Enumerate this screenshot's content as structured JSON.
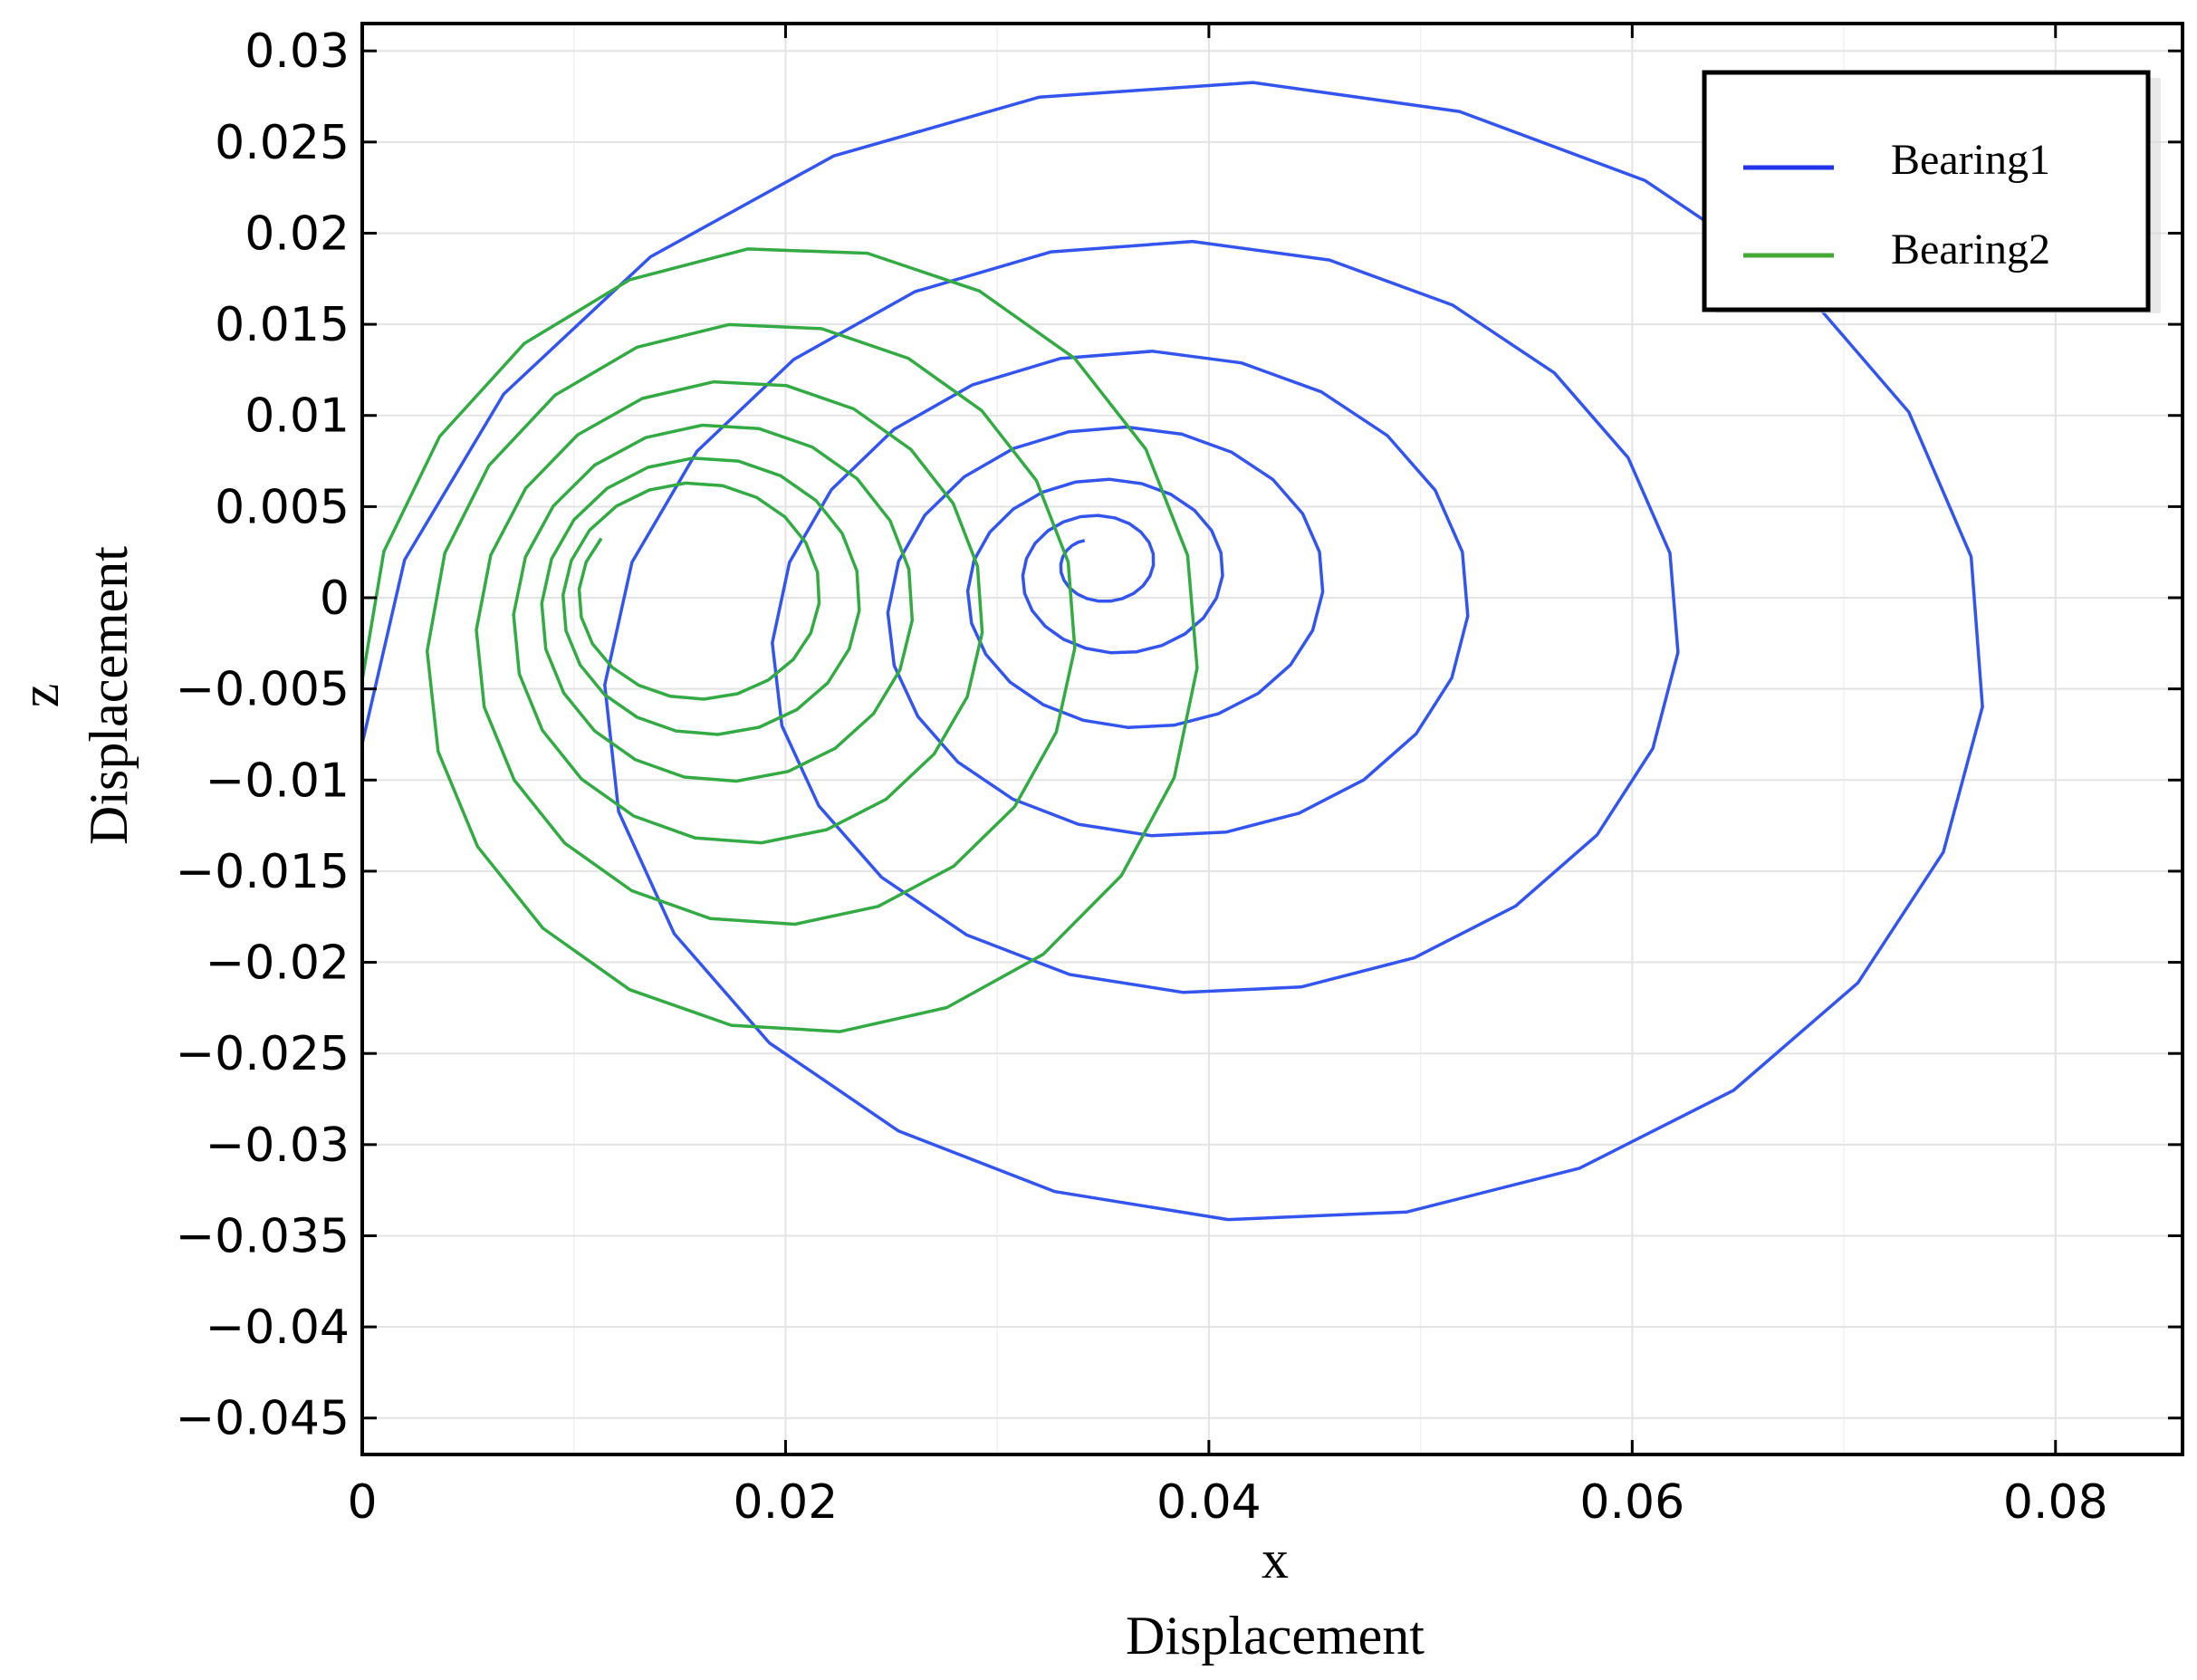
{
  "chart_data": {
    "type": "line",
    "title": "",
    "xlabel_var": "x",
    "xlabel": "Displacement",
    "ylabel_var": "z",
    "ylabel": "Displacement",
    "xlim": [
      0,
      0.086
    ],
    "ylim": [
      -0.047,
      0.0315
    ],
    "grid": true,
    "legend_position": "top-right",
    "x_ticks": [
      0,
      0.02,
      0.04,
      0.06,
      0.08
    ],
    "x_tick_labels": [
      "0",
      "0.02",
      "0.04",
      "0.06",
      "0.08"
    ],
    "y_ticks": [
      0.03,
      0.025,
      0.02,
      0.015,
      0.01,
      0.005,
      0,
      -0.005,
      -0.01,
      -0.015,
      -0.02,
      -0.025,
      -0.03,
      -0.035,
      -0.04,
      -0.045
    ],
    "y_tick_labels": [
      "0.03",
      "0.025",
      "0.02",
      "0.015",
      "0.01",
      "0.005",
      "0",
      "−0.005",
      "−0.01",
      "−0.015",
      "−0.02",
      "−0.025",
      "−0.03",
      "−0.035",
      "−0.04",
      "−0.045"
    ],
    "series": [
      {
        "name": "Bearing1",
        "color": "#3355ee",
        "spiral": {
          "center_start": [
            0.043,
            -0.008
          ],
          "center_end": [
            0.0345,
            0.002
          ],
          "r_start_x": 0.043,
          "r_start_z": 0.039,
          "r_end": 0.0012,
          "turns": 6.2,
          "phase_start_deg": 180,
          "points_per_turn": 24,
          "decay": 2.3
        }
      },
      {
        "name": "Bearing2",
        "color": "#33aa44",
        "spiral": {
          "center_start": [
            0.0215,
            -0.0045
          ],
          "center_end": [
            0.0155,
            0.0002
          ],
          "r_start_x": 0.0215,
          "r_start_z": 0.025,
          "r_end": 0.0052,
          "turns": 6.1,
          "phase_start_deg": 180,
          "points_per_turn": 22,
          "decay": 1.7
        }
      }
    ]
  },
  "legend": {
    "items": [
      {
        "label": "Bearing1",
        "color": "#2233ee"
      },
      {
        "label": "Bearing2",
        "color": "#44aa33"
      }
    ]
  }
}
